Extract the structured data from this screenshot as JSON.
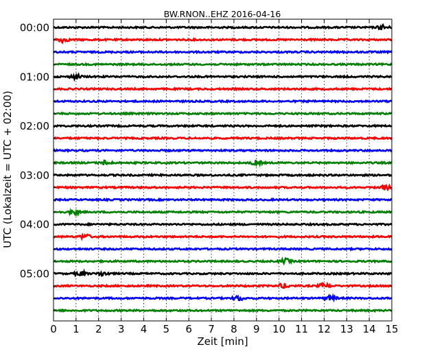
{
  "chart_data": {
    "type": "line",
    "title": "BW.RNON..EHZ 2016-04-16",
    "xlabel": "Zeit  [min]",
    "ylabel": "UTC (Lokalzeit = UTC + 02:00)",
    "xlim": [
      0,
      15
    ],
    "x_ticks": [
      "0",
      "1",
      "2",
      "3",
      "4",
      "5",
      "6",
      "7",
      "8",
      "9",
      "10",
      "11",
      "12",
      "13",
      "14",
      "15"
    ],
    "y_tick_labels": [
      "00:00",
      "01:00",
      "02:00",
      "03:00",
      "04:00",
      "05:00"
    ],
    "grid": "vertical dotted at each minute",
    "trace_interval_minutes": 15,
    "trace_colors": [
      "#000000",
      "#ff0000",
      "#0000ff",
      "#008000"
    ],
    "rows": [
      {
        "start": "00:00",
        "events_min": [
          14.6
        ]
      },
      {
        "start": "00:15",
        "events_min": [
          0.4
        ]
      },
      {
        "start": "00:30",
        "events_min": []
      },
      {
        "start": "00:45",
        "events_min": []
      },
      {
        "start": "01:00",
        "events_min": [
          1.0
        ]
      },
      {
        "start": "01:15",
        "events_min": []
      },
      {
        "start": "01:30",
        "events_min": []
      },
      {
        "start": "01:45",
        "events_min": []
      },
      {
        "start": "02:00",
        "events_min": []
      },
      {
        "start": "02:15",
        "events_min": []
      },
      {
        "start": "02:30",
        "events_min": []
      },
      {
        "start": "02:45",
        "events_min": [
          2.3,
          9.0
        ]
      },
      {
        "start": "03:00",
        "events_min": []
      },
      {
        "start": "03:15",
        "events_min": [
          14.7
        ]
      },
      {
        "start": "03:30",
        "events_min": []
      },
      {
        "start": "03:45",
        "events_min": [
          0.9
        ]
      },
      {
        "start": "04:00",
        "events_min": []
      },
      {
        "start": "04:15",
        "events_min": [
          1.4
        ]
      },
      {
        "start": "04:30",
        "events_min": []
      },
      {
        "start": "04:45",
        "events_min": [
          10.3
        ]
      },
      {
        "start": "05:00",
        "events_min": [
          1.2,
          2.2
        ]
      },
      {
        "start": "05:15",
        "events_min": [
          10.2,
          12.0
        ]
      },
      {
        "start": "05:30",
        "events_min": [
          8.2,
          12.3
        ]
      },
      {
        "start": "05:45",
        "events_min": []
      }
    ]
  }
}
